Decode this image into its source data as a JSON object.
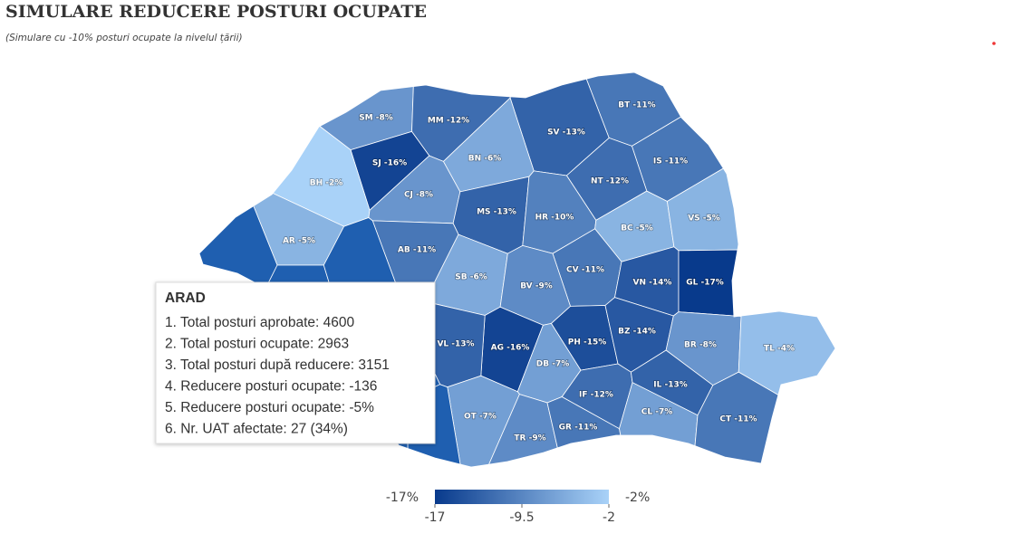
{
  "title": "SIMULARE REDUCERE POSTURI OCUPATE",
  "subtitle": "(Simulare cu -10% posturi ocupate la nivelul țării)",
  "regions": [
    {
      "label": "SM -8%",
      "value": -8
    },
    {
      "label": "MM -12%",
      "value": -12
    },
    {
      "label": "BT -11%",
      "value": -11
    },
    {
      "label": "SV -13%",
      "value": -13
    },
    {
      "label": "SJ -16%",
      "value": -16
    },
    {
      "label": "BN -6%",
      "value": -6
    },
    {
      "label": "IS -11%",
      "value": -11
    },
    {
      "label": "BH -2%",
      "value": -2
    },
    {
      "label": "CJ -8%",
      "value": -8
    },
    {
      "label": "NT -12%",
      "value": -12
    },
    {
      "label": "MS -13%",
      "value": -13
    },
    {
      "label": "HR -10%",
      "value": -10
    },
    {
      "label": "BC -5%",
      "value": -5
    },
    {
      "label": "VS -5%",
      "value": -5
    },
    {
      "label": "AR -5%",
      "value": -5
    },
    {
      "label": "AB -11%",
      "value": -11
    },
    {
      "label": "SB -6%",
      "value": -6
    },
    {
      "label": "CV -11%",
      "value": -11
    },
    {
      "label": "BV -9%",
      "value": -9
    },
    {
      "label": "VN -14%",
      "value": -14
    },
    {
      "label": "GL -17%",
      "value": -17
    },
    {
      "label": "AG -16%",
      "value": -16
    },
    {
      "label": "VL -13%",
      "value": -13
    },
    {
      "label": "PH -15%",
      "value": -15
    },
    {
      "label": "BZ -14%",
      "value": -14
    },
    {
      "label": "BR -8%",
      "value": -8
    },
    {
      "label": "TL -4%",
      "value": -4
    },
    {
      "label": "DB -7%",
      "value": -7
    },
    {
      "label": "IF -12%",
      "value": -12
    },
    {
      "label": "IL -13%",
      "value": -13
    },
    {
      "label": "OT -7%",
      "value": -7
    },
    {
      "label": "TR -9%",
      "value": -9
    },
    {
      "label": "GR -11%",
      "value": -11
    },
    {
      "label": "CL -7%",
      "value": -7
    },
    {
      "label": "CT -11%",
      "value": -11
    }
  ],
  "tooltip": {
    "title": "ARAD",
    "lines": [
      "1. Total posturi aprobate: 4600",
      "2. Total posturi ocupate: 2963",
      "3. Total posturi după reducere: 3151",
      "4. Reducere posturi ocupate: -136",
      "5. Reducere posturi ocupate: -5%",
      "6. Nr. UAT afectate: 27 (34%)"
    ]
  },
  "legend": {
    "min_label": "-17%",
    "max_label": "-2%",
    "range": [
      -17,
      -2
    ],
    "ticks": [
      -17,
      -9.5,
      -2
    ],
    "colors": [
      "#083a8c",
      "#a9d2f8"
    ]
  }
}
